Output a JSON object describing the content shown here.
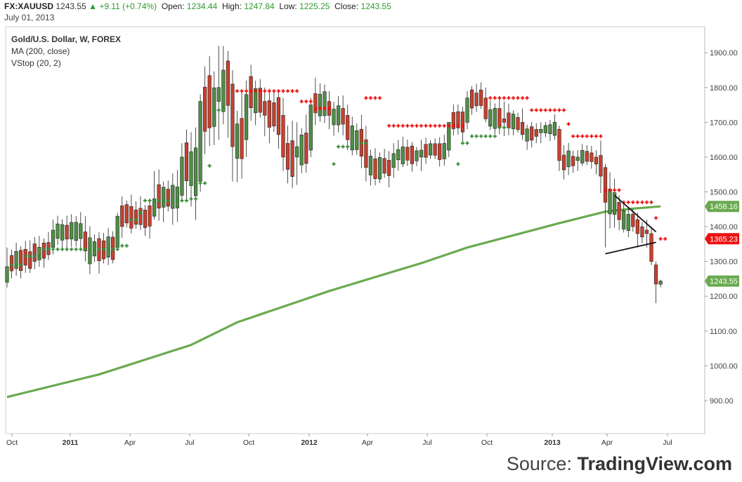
{
  "header": {
    "symbol": "FX:XAUUSD",
    "last": "1243.55",
    "change": "+9.11 (+0.74%)",
    "open_label": "Open:",
    "open": "1234.44",
    "high_label": "High:",
    "high": "1247.84",
    "low_label": "Low:",
    "low": "1225.25",
    "close_label": "Close:",
    "close": "1243.55",
    "date": "July 01, 2013"
  },
  "legend": {
    "title": "Gold/U.S. Dollar, W, FOREX",
    "ma": "MA (200, close)",
    "vstop": "VStop (20, 2)"
  },
  "source": {
    "prefix": "Source:",
    "name": "TradingView.com"
  },
  "colors": {
    "up": "#4f8f45",
    "down": "#c8402e",
    "ma": "#6aaa50",
    "vstop_up": "#3a8a3a",
    "vstop_down": "#ee1111"
  },
  "chart_data": {
    "type": "candlestick",
    "x_tick_labels": [
      "Oct",
      "2011",
      "Apr",
      "Jul",
      "Oct",
      "2012",
      "Apr",
      "Jul",
      "Oct",
      "2013",
      "Apr",
      "Jul"
    ],
    "y_ticks": [
      900,
      1000,
      1100,
      1200,
      1300,
      1400,
      1500,
      1600,
      1700,
      1800,
      1900
    ],
    "y_tick_labels": [
      "900.00",
      "1000.00",
      "1100.00",
      "1200.00",
      "1300.00",
      "1400.00",
      "1500.00",
      "1600.00",
      "1700.00",
      "1800.00",
      "1900.00"
    ],
    "ylim": [
      805,
      1975
    ],
    "price_labels": [
      {
        "value": 1458.16,
        "text": "1458.16",
        "color": "#6aaa50"
      },
      {
        "value": 1365.23,
        "text": "1365.23",
        "color": "#ee1111"
      },
      {
        "value": 1243.55,
        "text": "1243.55",
        "color": "#6aaa50"
      }
    ],
    "anchors": [
      [
        0,
        1240,
        1340,
        1225,
        1285
      ],
      [
        10,
        1340,
        1420,
        1320,
        1390
      ],
      [
        17,
        1385,
        1430,
        1300,
        1330
      ],
      [
        24,
        1340,
        1440,
        1330,
        1430
      ],
      [
        32,
        1430,
        1560,
        1420,
        1480
      ],
      [
        38,
        1490,
        1640,
        1470,
        1600
      ],
      [
        42,
        1530,
        1780,
        1500,
        1760
      ],
      [
        46,
        1760,
        1920,
        1650,
        1800
      ],
      [
        49,
        1810,
        1850,
        1530,
        1630
      ],
      [
        52,
        1650,
        1820,
        1600,
        1780
      ],
      [
        56,
        1760,
        1800,
        1660,
        1720
      ],
      [
        60,
        1720,
        1770,
        1560,
        1600
      ],
      [
        63,
        1600,
        1700,
        1520,
        1630
      ],
      [
        66,
        1620,
        1770,
        1600,
        1750
      ],
      [
        70,
        1760,
        1790,
        1680,
        1720
      ],
      [
        74,
        1720,
        1750,
        1620,
        1650
      ],
      [
        78,
        1650,
        1690,
        1530,
        1570
      ],
      [
        84,
        1570,
        1640,
        1540,
        1610
      ],
      [
        90,
        1600,
        1650,
        1560,
        1620
      ],
      [
        96,
        1620,
        1700,
        1600,
        1700
      ],
      [
        100,
        1700,
        1790,
        1680,
        1770
      ],
      [
        104,
        1770,
        1800,
        1700,
        1710
      ],
      [
        108,
        1710,
        1760,
        1660,
        1700
      ],
      [
        112,
        1700,
        1740,
        1650,
        1665
      ],
      [
        116,
        1670,
        1700,
        1640,
        1680
      ],
      [
        120,
        1680,
        1690,
        1560,
        1590
      ],
      [
        124,
        1590,
        1620,
        1560,
        1600
      ],
      [
        128,
        1600,
        1620,
        1550,
        1580
      ],
      [
        130,
        1570,
        1580,
        1340,
        1470
      ],
      [
        133,
        1470,
        1490,
        1390,
        1420
      ],
      [
        137,
        1420,
        1440,
        1340,
        1380
      ],
      [
        139,
        1390,
        1420,
        1340,
        1380
      ],
      [
        140,
        1380,
        1400,
        1290,
        1300
      ],
      [
        141,
        1290,
        1300,
        1180,
        1235
      ],
      [
        142,
        1234.44,
        1247.84,
        1225.25,
        1243.55
      ]
    ],
    "ma200": [
      [
        0,
        910
      ],
      [
        20,
        975
      ],
      [
        40,
        1060
      ],
      [
        50,
        1125
      ],
      [
        60,
        1170
      ],
      [
        70,
        1215
      ],
      [
        80,
        1255
      ],
      [
        90,
        1295
      ],
      [
        100,
        1340
      ],
      [
        110,
        1375
      ],
      [
        120,
        1410
      ],
      [
        126,
        1430
      ],
      [
        130,
        1443
      ],
      [
        136,
        1452
      ],
      [
        142,
        1458.16
      ]
    ],
    "vstop": {
      "support": [
        {
          "from": 0,
          "to": 0,
          "value": 1245
        },
        {
          "from": 1,
          "to": 3,
          "value": 1290
        },
        {
          "from": 4,
          "to": 7,
          "value": 1315
        },
        {
          "from": 8,
          "to": 24,
          "value": 1335
        },
        {
          "from": 25,
          "to": 26,
          "value": 1345
        },
        {
          "from": 27,
          "to": 28,
          "value": 1420
        },
        {
          "from": 29,
          "to": 29,
          "value": 1440
        },
        {
          "from": 30,
          "to": 39,
          "value": 1475
        },
        {
          "from": 40,
          "to": 41,
          "value": 1480
        },
        {
          "from": 42,
          "to": 43,
          "value": 1525
        },
        {
          "from": 44,
          "to": 44,
          "value": 1575
        },
        {
          "from": 45,
          "to": 46,
          "value": 1735
        },
        {
          "from": 47,
          "to": 47,
          "value": 1745
        },
        {
          "from": 71,
          "to": 71,
          "value": 1580
        },
        {
          "from": 72,
          "to": 76,
          "value": 1630
        },
        {
          "from": 77,
          "to": 78,
          "value": 1640
        },
        {
          "from": 98,
          "to": 98,
          "value": 1580
        },
        {
          "from": 99,
          "to": 100,
          "value": 1640
        },
        {
          "from": 101,
          "to": 106,
          "value": 1660
        },
        {
          "from": 107,
          "to": 108,
          "value": 1685
        }
      ],
      "resistance": [
        {
          "from": 50,
          "to": 63,
          "value": 1790
        },
        {
          "from": 64,
          "to": 66,
          "value": 1760
        },
        {
          "from": 67,
          "to": 70,
          "value": 1740
        },
        {
          "from": 78,
          "to": 81,
          "value": 1770
        },
        {
          "from": 83,
          "to": 99,
          "value": 1690
        },
        {
          "from": 105,
          "to": 113,
          "value": 1770
        },
        {
          "from": 114,
          "to": 121,
          "value": 1735
        },
        {
          "from": 122,
          "to": 122,
          "value": 1695
        },
        {
          "from": 123,
          "to": 129,
          "value": 1660
        },
        {
          "from": 130,
          "to": 133,
          "value": 1505
        },
        {
          "from": 134,
          "to": 140,
          "value": 1470
        },
        {
          "from": 141,
          "to": 141,
          "value": 1425
        },
        {
          "from": 142,
          "to": 143,
          "value": 1365
        }
      ]
    },
    "trendlines": [
      [
        [
          132,
          1490
        ],
        [
          141,
          1385
        ]
      ],
      [
        [
          130,
          1322
        ],
        [
          141,
          1355
        ]
      ]
    ]
  }
}
